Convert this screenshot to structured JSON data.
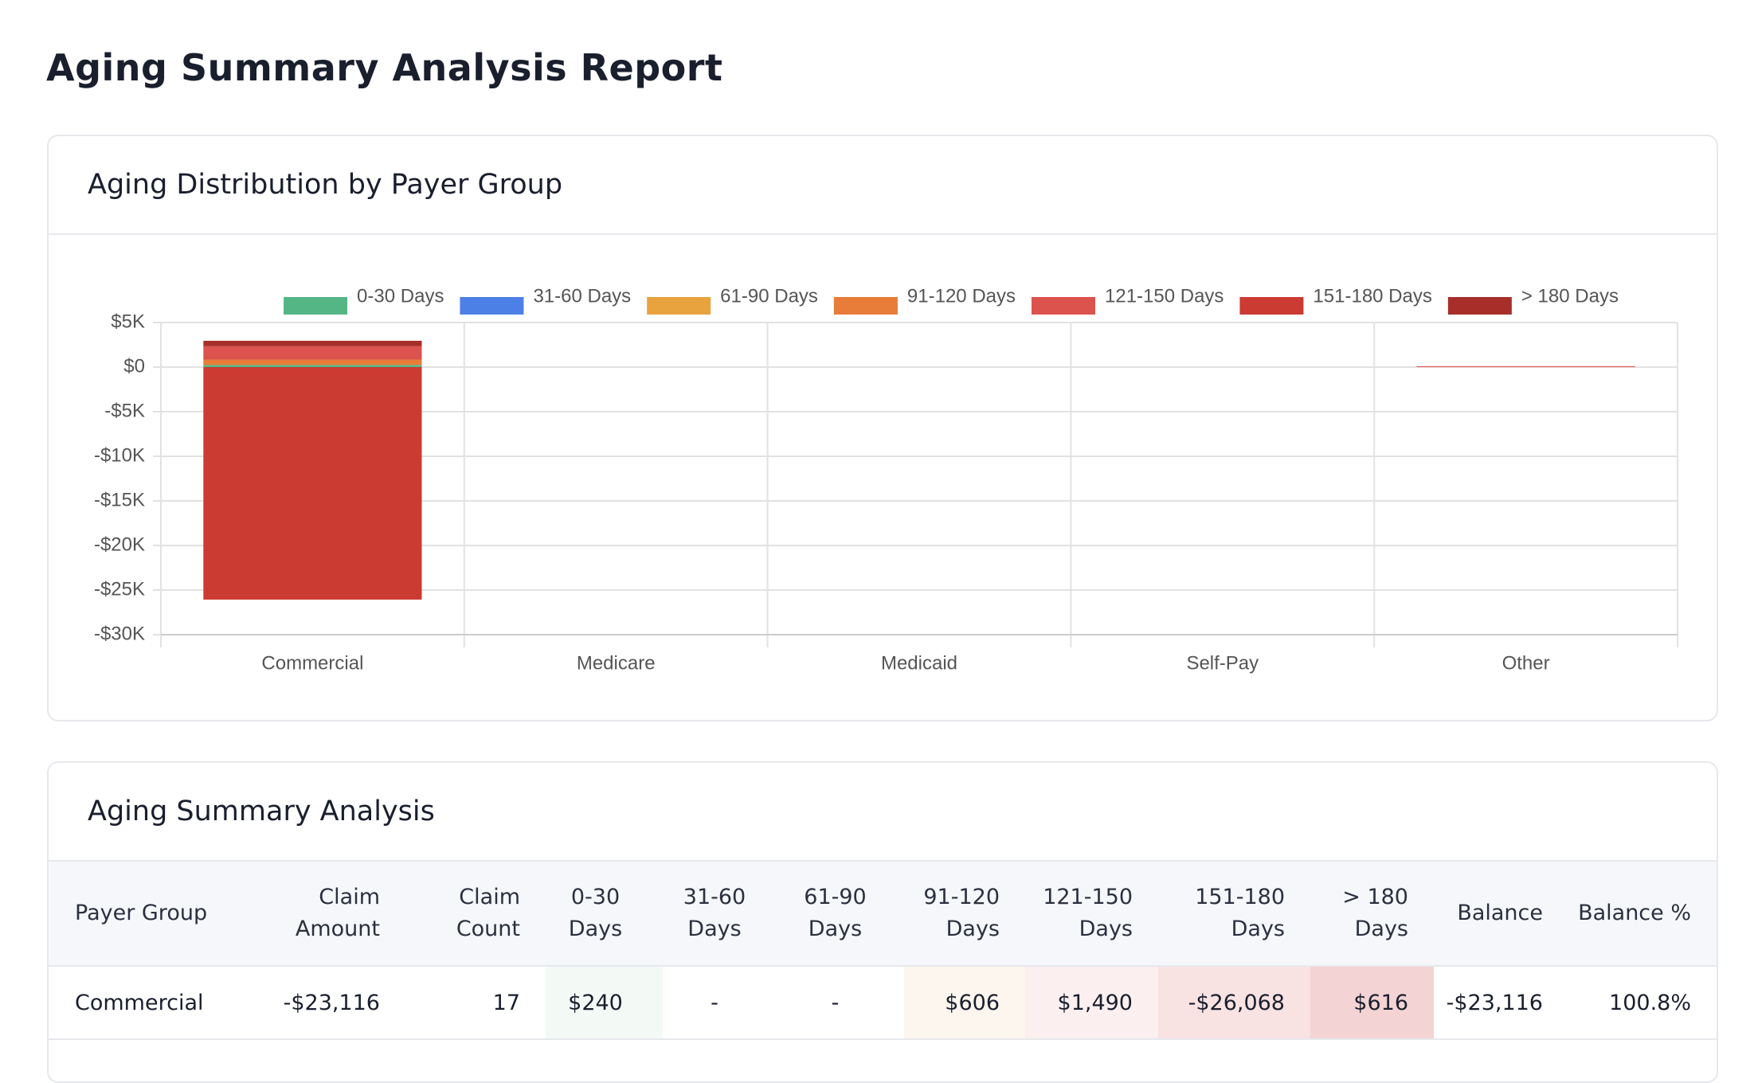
{
  "title": "Aging Summary Analysis Report",
  "chart_data": {
    "type": "bar",
    "stacked": true,
    "title": "Aging Distribution by Payer Group",
    "categories": [
      "Commercial",
      "Medicare",
      "Medicaid",
      "Self-Pay",
      "Other"
    ],
    "series": [
      {
        "name": "0-30 Days",
        "color": "#55b685",
        "values": [
          240,
          0,
          0,
          0,
          0
        ]
      },
      {
        "name": "31-60 Days",
        "color": "#4d80e6",
        "values": [
          0,
          0,
          0,
          0,
          0
        ]
      },
      {
        "name": "61-90 Days",
        "color": "#e8a23e",
        "values": [
          0,
          0,
          0,
          0,
          0
        ]
      },
      {
        "name": "91-120 Days",
        "color": "#e77d38",
        "values": [
          606,
          0,
          0,
          0,
          0
        ]
      },
      {
        "name": "121-150 Days",
        "color": "#dc524d",
        "values": [
          1490,
          0,
          0,
          0,
          100
        ]
      },
      {
        "name": "151-180 Days",
        "color": "#cb3b32",
        "values": [
          -26068,
          0,
          0,
          0,
          0
        ]
      },
      {
        "name": "> 180 Days",
        "color": "#a82e29",
        "values": [
          616,
          0,
          0,
          0,
          0
        ]
      }
    ],
    "ylim": [
      -30000,
      5000
    ],
    "yticks": [
      {
        "value": 5000,
        "label": "$5K"
      },
      {
        "value": 0,
        "label": "$0"
      },
      {
        "value": -5000,
        "label": "-$5K"
      },
      {
        "value": -10000,
        "label": "-$10K"
      },
      {
        "value": -15000,
        "label": "-$15K"
      },
      {
        "value": -20000,
        "label": "-$20K"
      },
      {
        "value": -25000,
        "label": "-$25K"
      },
      {
        "value": -30000,
        "label": "-$30K"
      }
    ],
    "grid": true,
    "legend": "top"
  },
  "table": {
    "title": "Aging Summary Analysis",
    "headers": [
      "Payer Group",
      "Claim Amount",
      "Claim Count",
      "0-30 Days",
      "31-60 Days",
      "61-90 Days",
      "91-120 Days",
      "121-150 Days",
      "151-180 Days",
      "> 180 Days",
      "Balance",
      "Balance %"
    ],
    "rows": [
      [
        "Commercial",
        "-$23,116",
        "17",
        "$240",
        "-",
        "-",
        "$606",
        "$1,490",
        "-$26,068",
        "$616",
        "-$23,116",
        "100.8%"
      ]
    ]
  }
}
